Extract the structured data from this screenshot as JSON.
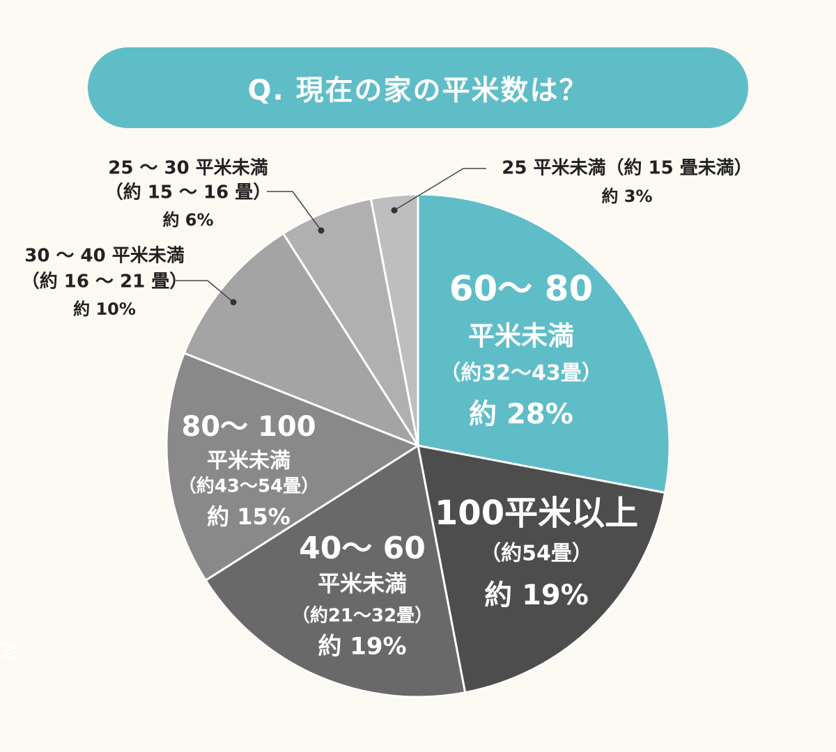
{
  "title": "Q. 現在の家の平米数は？",
  "colors": {
    "background": "#fdf9f3",
    "accent": "#5fbdc7",
    "divider": "#ffffff",
    "external_text": "#222222",
    "leader_line": "#444444"
  },
  "chart_data": {
    "type": "pie",
    "start_angle": "12 o'clock",
    "direction": "clockwise",
    "title": "Q. 現在の家の平米数は？",
    "slices": [
      {
        "label": "60～80平米未満",
        "value": 28,
        "color": "#5fbdc7",
        "label_position": "inside",
        "text_color": "#ffffff",
        "lines": [
          "60～ 80",
          "平米未満",
          "（約32～43畳）",
          "約 28%"
        ]
      },
      {
        "label": "100平米以上",
        "value": 19,
        "color": "#4d4d4d",
        "label_position": "inside",
        "text_color": "#ffffff",
        "lines": [
          "100平米以上",
          "（約54畳）",
          "約 19%"
        ]
      },
      {
        "label": "40～60平米未満",
        "value": 19,
        "color": "#696969",
        "label_position": "inside",
        "text_color": "#ffffff",
        "lines": [
          "40～ 60",
          "平米未満",
          "（約21～32畳）",
          "約 19%"
        ]
      },
      {
        "label": "80～100平米未満",
        "value": 15,
        "color": "#898989",
        "label_position": "inside",
        "text_color": "#ffffff",
        "lines": [
          "80～ 100",
          "平米未満",
          "（約43～54畳）",
          "約 15%"
        ]
      },
      {
        "label": "30～40平米未満",
        "value": 10,
        "color": "#a4a4a4",
        "label_position": "outside",
        "text_color": "#222222",
        "lines": [
          "30 ～ 40 平米未満",
          "（約 16 ～ 21 畳）",
          "約 10%"
        ]
      },
      {
        "label": "25～30平米未満",
        "value": 6,
        "color": "#b0b0b0",
        "label_position": "outside",
        "text_color": "#222222",
        "lines": [
          "25 ～ 30 平米未満",
          "（約 15 ～ 16 畳）",
          "約 6%"
        ]
      },
      {
        "label": "25平米未満",
        "value": 3,
        "color": "#bebebe",
        "label_position": "outside",
        "text_color": "#222222",
        "lines": [
          "25 平米未満（約 15 畳未満）",
          "約 3%"
        ]
      }
    ]
  },
  "side_mark": "≷"
}
